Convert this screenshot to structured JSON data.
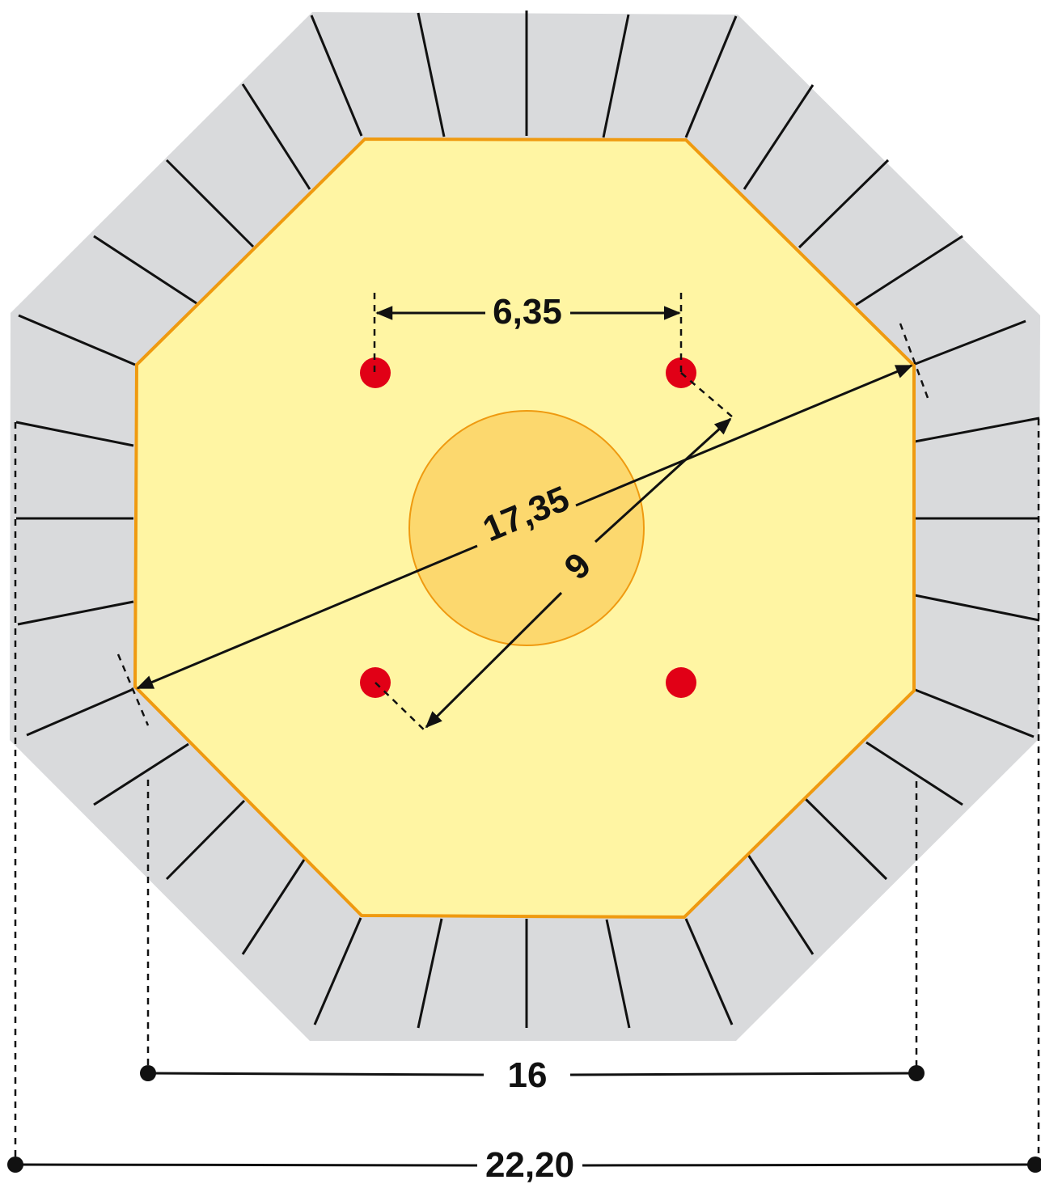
{
  "diagram": {
    "dimensions": {
      "hole_spacing": "6,35",
      "diagonal": "17,35",
      "hole_circle": "9",
      "inner_width": "16",
      "outer_width": "22,20"
    },
    "colors": {
      "outer_ring": "#d9dadc",
      "plate_fill": "#fff5a3",
      "plate_border": "#ef9a10",
      "center_circle": "#fcd86e",
      "bolt_holes": "#e10016",
      "lines": "#111111"
    }
  }
}
